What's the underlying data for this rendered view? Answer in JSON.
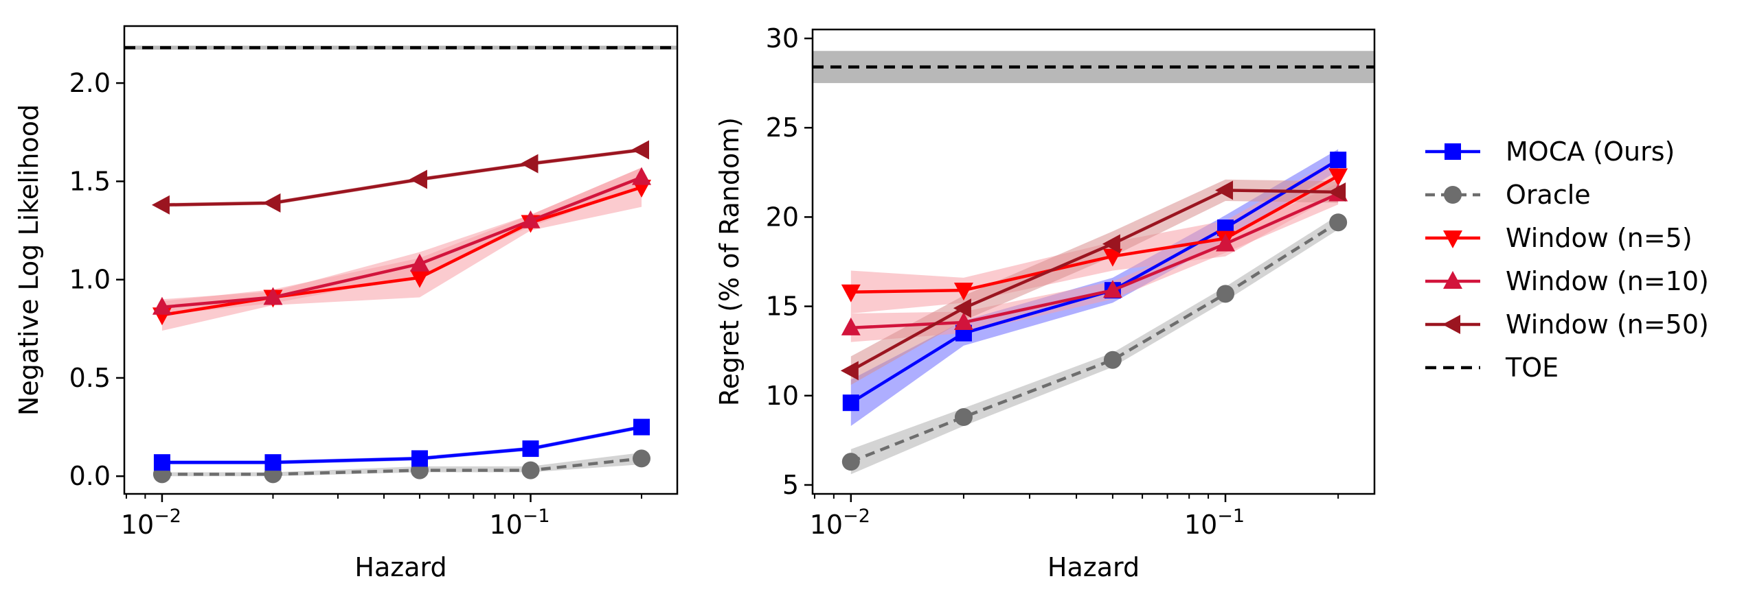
{
  "chart_data": [
    {
      "type": "line",
      "xscale": "log",
      "xlabel": "Hazard",
      "ylabel": "Negative Log Likelihood",
      "xlim": [
        0.0079,
        0.25
      ],
      "ylim": [
        -0.09,
        2.29
      ],
      "x": [
        0.01,
        0.02,
        0.05,
        0.1,
        0.2
      ],
      "xticks": [
        {
          "value": 0.01,
          "base": "10",
          "exp": "−2"
        },
        {
          "value": 0.1,
          "base": "10",
          "exp": "−1"
        }
      ],
      "yticks": [
        {
          "value": 0.0,
          "label": "0.0"
        },
        {
          "value": 0.5,
          "label": "0.5"
        },
        {
          "value": 1.0,
          "label": "1.0"
        },
        {
          "value": 1.5,
          "label": "1.5"
        },
        {
          "value": 2.0,
          "label": "2.0"
        }
      ],
      "series": [
        {
          "name": "Oracle",
          "values": [
            0.01,
            0.01,
            0.03,
            0.03,
            0.09
          ],
          "lower": [
            0.0,
            0.0,
            0.02,
            0.02,
            0.06
          ],
          "upper": [
            0.02,
            0.02,
            0.05,
            0.05,
            0.12
          ],
          "color": "#6d6d6d",
          "marker": "circle",
          "dash": "14,9",
          "band": "#b0b0b0"
        },
        {
          "name": "MOCA (Ours)",
          "values": [
            0.07,
            0.07,
            0.09,
            0.14,
            0.25
          ],
          "lower": [
            0.06,
            0.06,
            0.08,
            0.13,
            0.24
          ],
          "upper": [
            0.08,
            0.08,
            0.1,
            0.15,
            0.26
          ],
          "color": "#0000ff",
          "marker": "square",
          "band": "#6b6bff"
        },
        {
          "name": "Window (n=5)",
          "values": [
            0.82,
            0.91,
            1.01,
            1.29,
            1.47
          ],
          "lower": [
            0.74,
            0.87,
            0.91,
            1.25,
            1.37
          ],
          "upper": [
            0.89,
            0.95,
            1.11,
            1.33,
            1.57
          ],
          "color": "#ff0000",
          "marker": "triangle-down",
          "band": "#f7a0a8"
        },
        {
          "name": "Window (n=10)",
          "values": [
            0.86,
            0.91,
            1.08,
            1.3,
            1.52
          ],
          "lower": [
            0.82,
            0.88,
            1.02,
            1.27,
            1.47
          ],
          "upper": [
            0.9,
            0.94,
            1.14,
            1.33,
            1.57
          ],
          "color": "#d2143c",
          "marker": "triangle-up",
          "band": "#f7a0a8"
        },
        {
          "name": "Window (n=50)",
          "values": [
            1.38,
            1.39,
            1.51,
            1.59,
            1.66
          ],
          "lower": [
            1.37,
            1.38,
            1.5,
            1.58,
            1.65
          ],
          "upper": [
            1.39,
            1.4,
            1.52,
            1.6,
            1.67
          ],
          "color": "#9b1520",
          "marker": "triangle-left",
          "band": "#d89090"
        }
      ],
      "hline": {
        "name": "TOE",
        "value": 2.18,
        "lower": 2.17,
        "upper": 2.19,
        "color": "#000000"
      }
    },
    {
      "type": "line",
      "xscale": "log",
      "xlabel": "Hazard",
      "ylabel": "Regret (% of Random)",
      "xlim": [
        0.0079,
        0.25
      ],
      "ylim": [
        4.5,
        30.5
      ],
      "x": [
        0.01,
        0.02,
        0.05,
        0.1,
        0.2
      ],
      "xticks": [
        {
          "value": 0.01,
          "base": "10",
          "exp": "−2"
        },
        {
          "value": 0.1,
          "base": "10",
          "exp": "−1"
        }
      ],
      "yticks": [
        {
          "value": 5,
          "label": "5"
        },
        {
          "value": 10,
          "label": "10"
        },
        {
          "value": 15,
          "label": "15"
        },
        {
          "value": 20,
          "label": "20"
        },
        {
          "value": 25,
          "label": "25"
        },
        {
          "value": 30,
          "label": "30"
        }
      ],
      "series": [
        {
          "name": "Oracle",
          "values": [
            6.3,
            8.8,
            12.0,
            15.7,
            19.7
          ],
          "lower": [
            5.6,
            8.3,
            11.6,
            15.3,
            19.3
          ],
          "upper": [
            7.0,
            9.3,
            12.4,
            16.1,
            20.1
          ],
          "color": "#6d6d6d",
          "marker": "circle",
          "dash": "14,9",
          "band": "#b0b0b0"
        },
        {
          "name": "MOCA (Ours)",
          "values": [
            9.6,
            13.5,
            15.9,
            19.4,
            23.2
          ],
          "lower": [
            8.3,
            12.8,
            15.2,
            18.7,
            22.6
          ],
          "upper": [
            10.9,
            14.2,
            16.6,
            20.1,
            23.8
          ],
          "color": "#0000ff",
          "marker": "square",
          "band": "#6b6bff"
        },
        {
          "name": "Window (n=5)",
          "values": [
            15.8,
            15.9,
            17.8,
            18.8,
            22.3
          ],
          "lower": [
            14.6,
            15.2,
            17.0,
            17.8,
            21.3
          ],
          "upper": [
            17.0,
            16.6,
            18.6,
            19.8,
            23.3
          ],
          "color": "#ff0000",
          "marker": "triangle-down",
          "band": "#f7a0a8"
        },
        {
          "name": "Window (n=10)",
          "values": [
            13.8,
            14.1,
            15.9,
            18.5,
            21.3
          ],
          "lower": [
            13.0,
            13.5,
            15.4,
            18.0,
            20.7
          ],
          "upper": [
            14.6,
            14.7,
            16.4,
            19.0,
            21.9
          ],
          "color": "#d2143c",
          "marker": "triangle-up",
          "band": "#f7a0a8"
        },
        {
          "name": "Window (n=50)",
          "values": [
            11.4,
            14.9,
            18.5,
            21.5,
            21.4
          ],
          "lower": [
            10.6,
            14.2,
            17.8,
            20.9,
            20.8
          ],
          "upper": [
            12.2,
            15.6,
            19.2,
            22.1,
            22.0
          ],
          "color": "#9b1520",
          "marker": "triangle-left",
          "band": "#d89090"
        }
      ],
      "hline": {
        "name": "TOE",
        "value": 28.4,
        "lower": 27.5,
        "upper": 29.3,
        "color": "#000000"
      }
    }
  ],
  "legend": {
    "position": "right",
    "entries": [
      {
        "label": "MOCA (Ours)",
        "color": "#0000ff",
        "marker": "square",
        "dash": ""
      },
      {
        "label": "Oracle",
        "color": "#6d6d6d",
        "marker": "circle",
        "dash": "14,9"
      },
      {
        "label": "Window (n=5)",
        "color": "#ff0000",
        "marker": "triangle-down",
        "dash": ""
      },
      {
        "label": "Window (n=10)",
        "color": "#d2143c",
        "marker": "triangle-up",
        "dash": ""
      },
      {
        "label": "Window (n=50)",
        "color": "#9b1520",
        "marker": "triangle-left",
        "dash": ""
      },
      {
        "label": "TOE",
        "color": "#000000",
        "marker": "none",
        "dash": "16,10"
      }
    ]
  }
}
